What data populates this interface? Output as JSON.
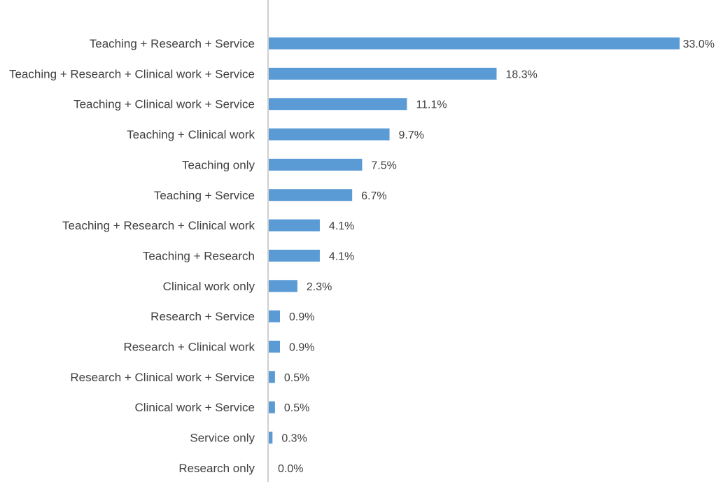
{
  "chart_data": {
    "type": "bar",
    "orientation": "horizontal",
    "categories": [
      "Teaching + Research + Service",
      "Teaching + Research + Clinical work + Service",
      "Teaching + Clinical work + Service",
      "Teaching + Clinical work",
      "Teaching only",
      "Teaching + Service",
      "Teaching + Research + Clinical work",
      "Teaching + Research",
      "Clinical work only",
      "Research + Service",
      "Research + Clinical work",
      "Research + Clinical work + Service",
      "Clinical work + Service",
      "Service only",
      "Research only"
    ],
    "values": [
      33.0,
      18.3,
      11.1,
      9.7,
      7.5,
      6.7,
      4.1,
      4.1,
      2.3,
      0.9,
      0.9,
      0.5,
      0.5,
      0.3,
      0.0
    ],
    "value_labels": [
      "33.0%",
      "18.3%",
      "11.1%",
      "9.7%",
      "7.5%",
      "6.7%",
      "4.1%",
      "4.1%",
      "2.3%",
      "0.9%",
      "0.9%",
      "0.5%",
      "0.5%",
      "0.3%",
      "0.0%"
    ],
    "title": "",
    "xlabel": "",
    "ylabel": "",
    "xlim": [
      0,
      33.0
    ],
    "grid": false,
    "legend": "none",
    "colors": {
      "bar": "#5b9bd5",
      "axis": "#bfbfbf",
      "text": "#404040"
    }
  }
}
